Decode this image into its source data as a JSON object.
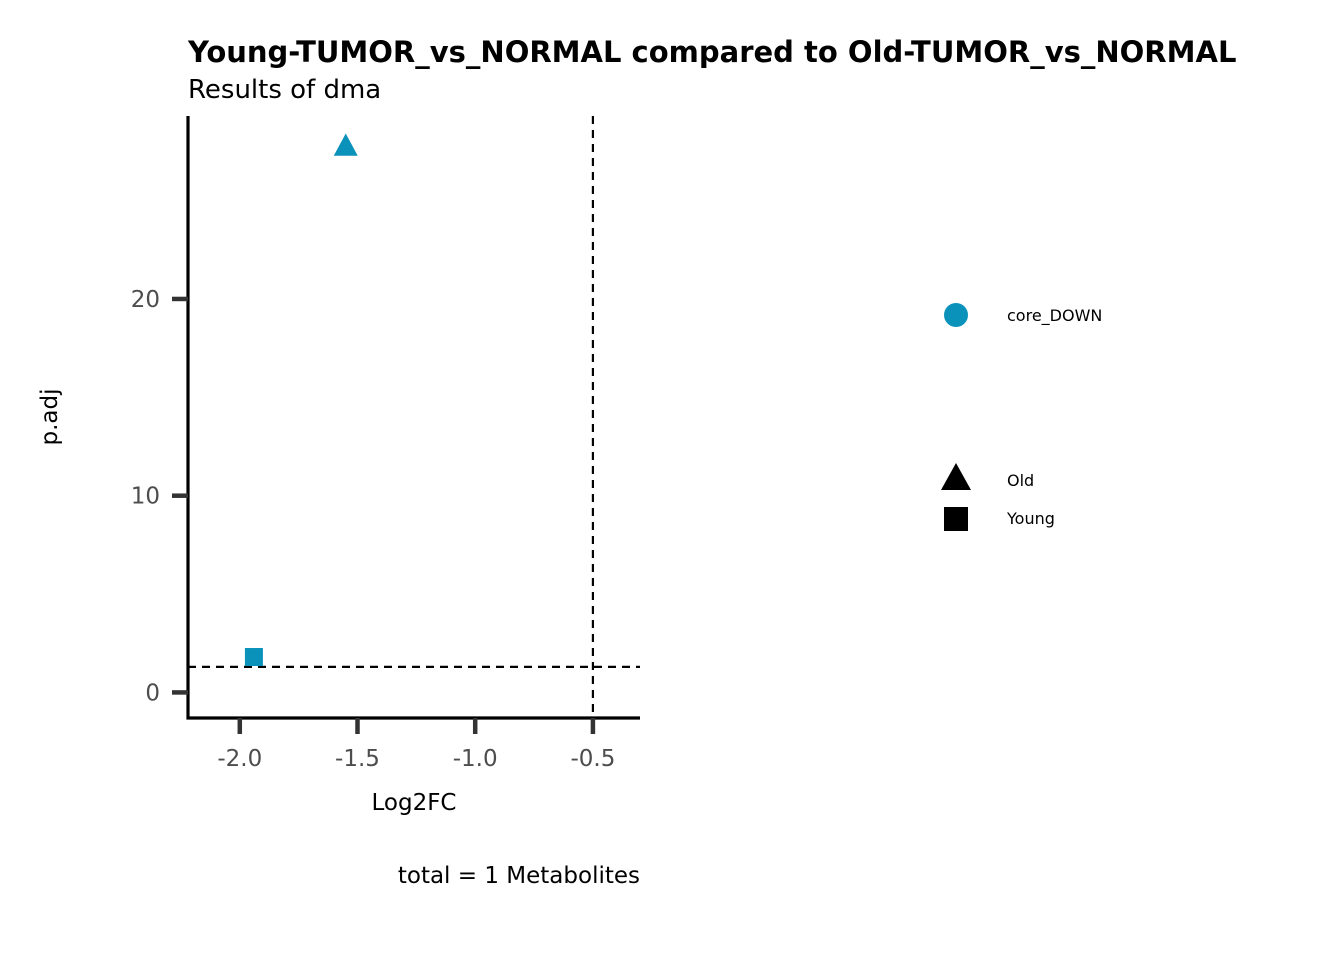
{
  "chart_data": {
    "type": "scatter",
    "title": "Young-TUMOR_vs_NORMAL compared to Old-TUMOR_vs_NORMAL",
    "subtitle": "Results of dma",
    "xlabel": "Log2FC",
    "ylabel": "p.adj",
    "caption": "total = 1 Metabolites",
    "xlim": [
      -2.22,
      -0.3
    ],
    "ylim": [
      -1.3,
      29.3
    ],
    "xticks": [
      -2.0,
      -1.5,
      -1.0,
      -0.5
    ],
    "xtick_labels": [
      "-2.0",
      "-1.5",
      "-1.0",
      "-0.5"
    ],
    "yticks": [
      0,
      10,
      20
    ],
    "ytick_labels": [
      "0",
      "10",
      "20"
    ],
    "reference_lines": {
      "vertical_x": -0.5,
      "horizontal_y": 1.3,
      "style": "dashed"
    },
    "grid": false,
    "points": [
      {
        "x": -1.55,
        "y": 27.8,
        "shape": "triangle",
        "shape_group": "Old",
        "color_group": "core_DOWN"
      },
      {
        "x": -1.94,
        "y": 1.8,
        "shape": "square",
        "shape_group": "Young",
        "color_group": "core_DOWN"
      }
    ],
    "legend": {
      "placement": "right",
      "color_entries": [
        {
          "label": "core_DOWN",
          "color": "#0b92bb",
          "symbol": "circle"
        }
      ],
      "shape_entries": [
        {
          "label": "Old",
          "symbol": "triangle"
        },
        {
          "label": "Young",
          "symbol": "square"
        }
      ]
    },
    "colors": {
      "core_DOWN": "#0b92bb",
      "axis": "#000000",
      "tick": "#333333",
      "tick_label": "#4d4d4d"
    }
  }
}
